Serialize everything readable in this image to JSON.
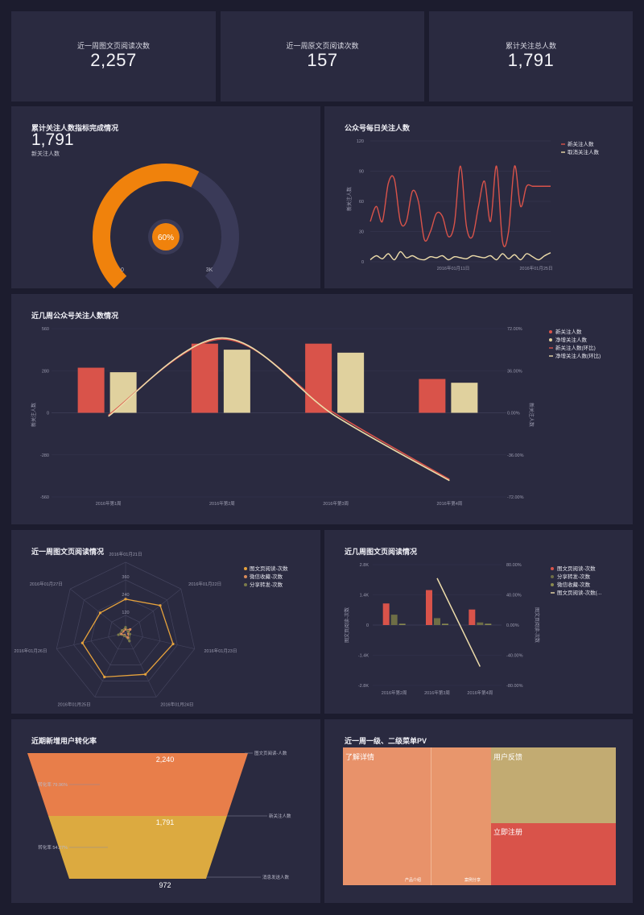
{
  "kpis": [
    {
      "label": "近一周图文页阅读次数",
      "value": "2,257"
    },
    {
      "label": "近一周原文页阅读次数",
      "value": "157"
    },
    {
      "label": "累计关注总人数",
      "value": "1,791"
    }
  ],
  "gauge": {
    "title": "累计关注人数指标完成情况",
    "value": "1,791",
    "sub": "新关注人数",
    "percent_label": "60%",
    "min_label": "0",
    "max_label": "3K",
    "fraction": 0.6,
    "fill_color": "#f0820c",
    "track_color": "#3a3a58"
  },
  "daily": {
    "title": "公众号每日关注人数",
    "ylabel": "新关注人数",
    "yticks": [
      "120",
      "90",
      "60",
      "30",
      "0"
    ],
    "xticks": [
      "2016年01月11日",
      "2016年01月25日"
    ],
    "legend": [
      "新关注人数",
      "取消关注人数"
    ]
  },
  "weekly": {
    "title": "近几周公众号关注人数情况",
    "yticks_left": [
      "560",
      "280",
      "0",
      "-280",
      "-560"
    ],
    "yticks_right": [
      "72.00%",
      "36.00%",
      "0.00%",
      "-36.00%",
      "-72.00%"
    ],
    "ylabel_left": "新关注人数",
    "ylabel_right": "新关注人数",
    "xticks": [
      "2016年第1周",
      "2016年第2周",
      "2016年第3周",
      "2016年第4周"
    ],
    "legend": [
      "新关注人数",
      "净增关注人数",
      "新关注人数(环比)",
      "净增关注人数(环比)"
    ]
  },
  "radar": {
    "title": "近一周图文页阅读情况",
    "axes": [
      "2016年01月21日",
      "2016年01月22日",
      "2016年01月23日",
      "2016年01月24日",
      "2016年01月25日",
      "2016年01月26日",
      "2016年01月27日"
    ],
    "rings": [
      "360",
      "240",
      "120"
    ],
    "legend": [
      "图文页阅读-次数",
      "微信收藏-次数",
      "分享转发-次数"
    ]
  },
  "weekly_reads": {
    "title": "近几周图文页阅读情况",
    "yticks_left": [
      "2.8K",
      "1.4K",
      "0",
      "-1.4K",
      "-2.8K"
    ],
    "yticks_right": [
      "80.00%",
      "40.00%",
      "0.00%",
      "-40.00%",
      "-80.00%"
    ],
    "ylabel_left": "图文页阅读-次数",
    "ylabel_right": "图文页阅读-次数",
    "xticks": [
      "2016年第2周",
      "2016年第3周",
      "2016年第4周"
    ],
    "legend": [
      "图文页阅读-次数",
      "分享转发-次数",
      "微信收藏-次数",
      "图文页阅读-次数(..."
    ]
  },
  "funnel": {
    "title": "近期新增用户转化率",
    "stages": [
      {
        "label": "图文页阅读-人数",
        "value": "2,240"
      },
      {
        "label": "新关注人数",
        "value": "1,791"
      },
      {
        "label": "消息发送人数",
        "value": "972"
      }
    ],
    "rates": [
      "转化率 79.96%",
      "转化率 54.27%"
    ]
  },
  "treemap": {
    "title": "近一周一级、二级菜单PV",
    "blocks": [
      {
        "label": "了解详情"
      },
      {
        "label": "用户反馈"
      },
      {
        "label": "立即注册"
      }
    ],
    "subs": [
      "产品介绍",
      "案例分享"
    ]
  },
  "chart_data": [
    {
      "type": "line",
      "title": "公众号每日关注人数",
      "ylabel": "新关注人数",
      "ylim": [
        0,
        120
      ],
      "x": [
        "2016-01-01",
        "2016-01-02",
        "2016-01-03",
        "2016-01-04",
        "2016-01-05",
        "2016-01-06",
        "2016-01-07",
        "2016-01-08",
        "2016-01-09",
        "2016-01-10",
        "2016-01-11",
        "2016-01-12",
        "2016-01-13",
        "2016-01-14",
        "2016-01-15",
        "2016-01-16",
        "2016-01-17",
        "2016-01-18",
        "2016-01-19",
        "2016-01-20",
        "2016-01-21",
        "2016-01-22",
        "2016-01-23",
        "2016-01-24",
        "2016-01-25",
        "2016-01-26",
        "2016-01-27",
        "2016-01-28",
        "2016-01-29",
        "2016-01-30",
        "2016-01-31"
      ],
      "series": [
        {
          "name": "新关注人数",
          "color": "#d9534a",
          "values": [
            40,
            55,
            40,
            78,
            82,
            40,
            40,
            70,
            60,
            22,
            30,
            48,
            45,
            25,
            38,
            95,
            35,
            25,
            55,
            80,
            40,
            95,
            20,
            30,
            95,
            55,
            75,
            75,
            75,
            75,
            75
          ]
        },
        {
          "name": "取消关注人数",
          "color": "#eddcaa",
          "values": [
            2,
            6,
            3,
            8,
            2,
            10,
            4,
            6,
            3,
            2,
            5,
            4,
            6,
            2,
            5,
            4,
            3,
            6,
            5,
            4,
            6,
            2,
            8,
            3,
            7,
            2,
            8,
            5,
            2,
            6,
            9
          ]
        }
      ]
    },
    {
      "type": "bar",
      "title": "近几周公众号关注人数情况",
      "categories": [
        "2016年第1周",
        "2016年第2周",
        "2016年第3周",
        "2016年第4周"
      ],
      "ylim": [
        -560,
        560
      ],
      "y2lim": [
        -72,
        72
      ],
      "series": [
        {
          "name": "新关注人数",
          "color": "#d9534a",
          "values": [
            300,
            460,
            460,
            225
          ]
        },
        {
          "name": "净增关注人数",
          "color": "#e0d19e",
          "values": [
            270,
            420,
            400,
            200
          ]
        },
        {
          "name": "新关注人数(环比)",
          "color": "#d9534a",
          "axis": "right",
          "values": [
            -2,
            63,
            -1,
            -57
          ]
        },
        {
          "name": "净增关注人数(环比)",
          "color": "#eddcaa",
          "axis": "right",
          "values": [
            -3,
            64,
            -3,
            -58
          ]
        }
      ]
    },
    {
      "type": "radar",
      "title": "近一周图文页阅读情况",
      "categories": [
        "2016年01月21日",
        "2016年01月22日",
        "2016年01月23日",
        "2016年01月24日",
        "2016年01月25日",
        "2016年01月26日",
        "2016年01月27日"
      ],
      "rmax": 480,
      "series": [
        {
          "name": "图文页阅读-次数",
          "color": "#e6a23c",
          "values": [
            230,
            300,
            330,
            310,
            330,
            300,
            220
          ]
        },
        {
          "name": "微信收藏-次数",
          "color": "#d98a5a",
          "values": [
            25,
            40,
            20,
            35,
            15,
            30,
            20
          ]
        },
        {
          "name": "分享转发-次数",
          "color": "#7a7a4a",
          "values": [
            40,
            20,
            30,
            60,
            20,
            50,
            30
          ]
        }
      ]
    },
    {
      "type": "bar",
      "title": "近几周图文页阅读情况",
      "categories": [
        "2016年第2周",
        "2016年第3周",
        "2016年第4周"
      ],
      "ylim": [
        -2800,
        2800
      ],
      "y2lim": [
        -80,
        80
      ],
      "series": [
        {
          "name": "图文页阅读-次数",
          "color": "#d9534a",
          "values": [
            1000,
            1620,
            720
          ]
        },
        {
          "name": "分享转发-次数",
          "color": "#6e6e46",
          "values": [
            480,
            320,
            120
          ]
        },
        {
          "name": "微信收藏-次数",
          "color": "#8a8a50",
          "values": [
            60,
            60,
            60
          ]
        },
        {
          "name": "图文页阅读-次数(...",
          "color": "#eddcaa",
          "axis": "right",
          "values": [
            null,
            62,
            -55
          ]
        }
      ]
    },
    {
      "type": "funnel",
      "title": "近期新增用户转化率",
      "categories": [
        "图文页阅读-人数",
        "新关注人数",
        "消息发送人数"
      ],
      "values": [
        2240,
        1791,
        972
      ],
      "rates": [
        79.96,
        54.27
      ]
    },
    {
      "type": "treemap",
      "title": "近一周一级、二级菜单PV",
      "categories": [
        "了解详情",
        "用户反馈",
        "立即注册"
      ],
      "children": {
        "了解详情": [
          "产品介绍",
          "案例分享"
        ]
      }
    }
  ]
}
